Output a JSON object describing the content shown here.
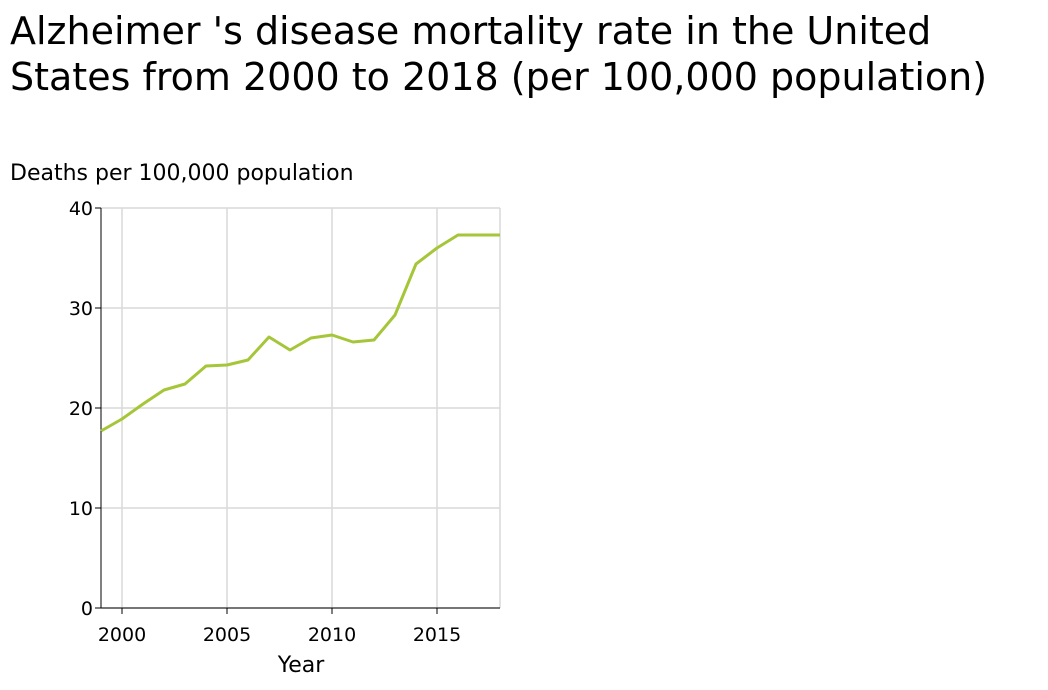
{
  "chart_data": {
    "type": "line",
    "title": "Alzheimer 's disease mortality rate in the United States from 2000 to 2018 (per 100,000 population)",
    "xlabel": "Year",
    "ylabel": "Deaths per 100,000 population",
    "xlim": [
      1999,
      2018
    ],
    "ylim": [
      0,
      40
    ],
    "x_ticks": [
      2000,
      2005,
      2010,
      2015
    ],
    "y_ticks": [
      0,
      10,
      20,
      30,
      40
    ],
    "grid": true,
    "line_color": "#a5c639",
    "series": [
      {
        "x": [
          1999,
          2000,
          2001,
          2002,
          2003,
          2004,
          2005,
          2006,
          2007,
          2008,
          2009,
          2010,
          2011,
          2012,
          2013,
          2014,
          2015,
          2016,
          2017,
          2018
        ],
        "values": [
          17.7,
          18.9,
          20.4,
          21.8,
          22.4,
          24.2,
          24.3,
          24.8,
          27.1,
          25.8,
          27.0,
          27.3,
          26.6,
          26.8,
          29.3,
          34.4,
          36.0,
          37.3,
          37.3,
          37.3
        ]
      }
    ]
  }
}
